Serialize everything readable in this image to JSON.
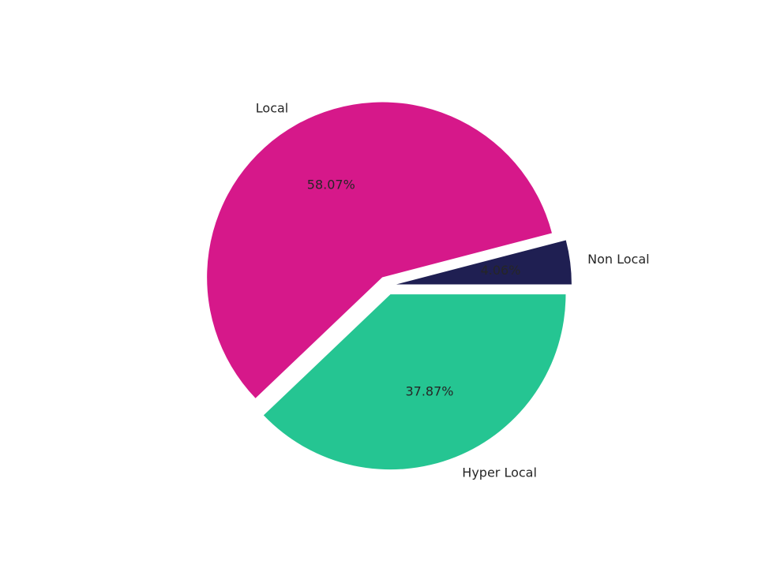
{
  "chart_data": {
    "type": "pie",
    "categories": [
      "Non Local",
      "Local",
      "Hyper Local"
    ],
    "values": [
      4.06,
      58.07,
      37.87
    ],
    "value_labels": [
      "4.06%",
      "58.07%",
      "37.87%"
    ],
    "colors": [
      "#1f1f52",
      "#d6188a",
      "#25c592"
    ]
  }
}
